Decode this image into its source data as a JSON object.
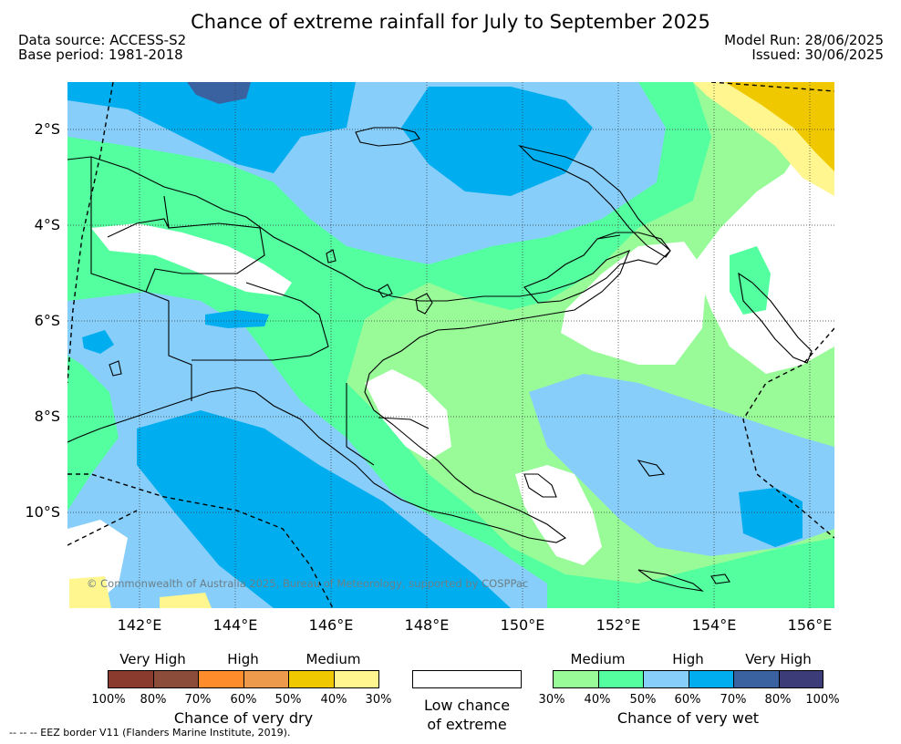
{
  "title": "Chance of extreme rainfall for July to September 2025",
  "meta": {
    "data_source": "Data source: ACCESS-S2",
    "base_period": "Base period: 1981-2018",
    "model_run": "Model Run: 28/06/2025",
    "issued": "Issued: 30/06/2025"
  },
  "axes": {
    "lat_labels": [
      "2°S",
      "4°S",
      "6°S",
      "8°S",
      "10°S"
    ],
    "lon_labels": [
      "142°E",
      "144°E",
      "146°E",
      "148°E",
      "150°E",
      "152°E",
      "154°E",
      "156°E"
    ]
  },
  "copyright": "© Commonwealth of Australia 2025, Bureau of Meteorology, supported by COSPPac",
  "legend": {
    "dry": {
      "headers": [
        "Very High",
        "High",
        "Medium"
      ],
      "colors": [
        "#8b3a2e",
        "#8b4c3a",
        "#ff8c2b",
        "#ee9a4d",
        "#f0c800",
        "#fff68f"
      ],
      "ticks": [
        "100%",
        "80%",
        "70%",
        "60%",
        "50%",
        "40%",
        "30%"
      ],
      "title": "Chance of very dry"
    },
    "low": {
      "line1": "Low chance",
      "line2": "of extreme"
    },
    "wet": {
      "headers": [
        "Medium",
        "High",
        "Very High"
      ],
      "colors": [
        "#98fb98",
        "#54ff9f",
        "#87cefa",
        "#00aeef",
        "#3a62a0",
        "#3c3c78"
      ],
      "ticks": [
        "30%",
        "40%",
        "50%",
        "60%",
        "70%",
        "80%",
        "100%"
      ],
      "title": "Chance of very wet"
    }
  },
  "footnote": "--  --  -- EEZ border V11 (Flanders Marine Institute, 2019)."
}
